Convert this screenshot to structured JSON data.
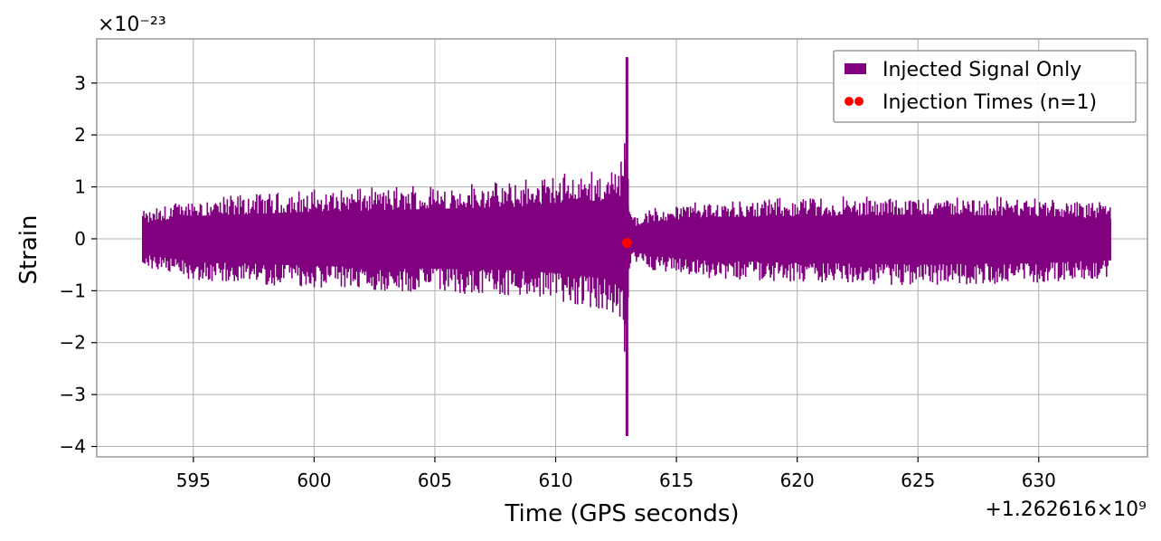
{
  "chart_data": {
    "type": "line",
    "xlabel": "Time (GPS seconds)",
    "ylabel": "Strain",
    "x_offset_label": "+1.262616×10⁹",
    "y_scale_label": "×10⁻²³",
    "xlim": [
      591.0,
      634.5
    ],
    "ylim": [
      -4.2,
      3.85
    ],
    "x_ticks": [
      595,
      600,
      605,
      610,
      615,
      620,
      625,
      630
    ],
    "y_ticks": [
      -4,
      -3,
      -2,
      -1,
      0,
      1,
      2,
      3
    ],
    "x_tick_labels": [
      "595",
      "600",
      "605",
      "610",
      "615",
      "620",
      "625",
      "630"
    ],
    "y_tick_labels": [
      "−4",
      "−3",
      "−2",
      "−1",
      "0",
      "1",
      "2",
      "3"
    ],
    "grid": true,
    "legend_position": "top-right",
    "series": [
      {
        "name": "Injected Signal Only",
        "color": "#800080",
        "style": "filled-band",
        "x_range": [
          592.9,
          633.0
        ],
        "envelope": {
          "x": [
            592.9,
            595,
            600,
            605,
            608,
            610,
            611,
            612,
            612.5,
            612.8,
            612.95,
            613.05,
            613.3,
            614,
            616,
            620,
            625,
            630,
            633.0
          ],
          "upper": [
            0.55,
            0.8,
            0.95,
            1.05,
            1.1,
            1.25,
            1.3,
            1.35,
            1.4,
            1.6,
            3.5,
            0.7,
            0.45,
            0.6,
            0.75,
            0.8,
            0.85,
            0.8,
            0.7
          ],
          "lower": [
            -0.55,
            -0.8,
            -0.95,
            -1.05,
            -1.1,
            -1.2,
            -1.3,
            -1.4,
            -1.5,
            -1.7,
            -3.8,
            -0.55,
            -0.45,
            -0.6,
            -0.75,
            -0.85,
            -0.9,
            -0.85,
            -0.75
          ]
        }
      },
      {
        "name": "Injection Times (n=1)",
        "color": "#ff0000",
        "style": "marker",
        "points": [
          {
            "x": 612.95,
            "y": -0.08
          }
        ]
      }
    ]
  }
}
